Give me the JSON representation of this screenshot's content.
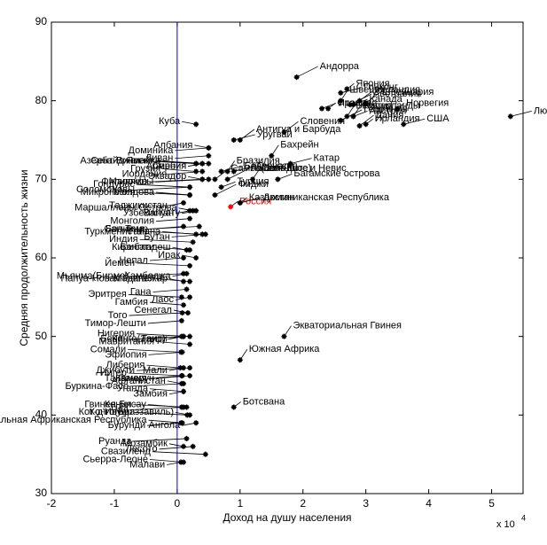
{
  "chart_data": {
    "type": "scatter",
    "x_label": "Доход на душу населения",
    "y_label": "Средняя продолжительность жизни",
    "x_multiplier": "x 10",
    "x_multiplier_exp": "4",
    "xlim": [
      -2,
      5.5
    ],
    "ylim": [
      30,
      90
    ],
    "xticks": [
      -2,
      -1,
      0,
      1,
      2,
      3,
      4,
      5
    ],
    "yticks": [
      30,
      40,
      50,
      60,
      70,
      80,
      90
    ],
    "zero_line_color": "#0000ff",
    "color": "#000000",
    "highlight_color": "#ff0000",
    "highlight": "Россия",
    "series": [
      {
        "name": "Страны",
        "labels": [
          "Япония",
          "Исландия",
          "Гонконг",
          "Швеция",
          "Канада",
          "Австралия",
          "Норвегия",
          "Швейцария",
          "Люксембург",
          "Бельгия",
          "Австрия",
          "Германия",
          "Ирландия",
          "Дания",
          "США",
          "Нидерланды",
          "Италия",
          "Андорра",
          "Франция",
          "Словения",
          "Катар",
          "Бахрейн",
          "Багамские острова",
          "Латвия",
          "Россия",
          "Антигуа и Барбуда",
          "Белоруссия",
          "Куба",
          "Ливан",
          "Сент-Винсент",
          "Сербия",
          "Ямайка",
          "Уругвай",
          "Албания",
          "Доминика",
          "Азербайджан",
          "Армения",
          "Грузия",
          "Соломоновы",
          "Эквадор",
          "Иордания",
          "Гондурас",
          "Таджикистан",
          "Молдова",
          "Марокко",
          "Маршалловы Острова",
          "Монголия",
          "Туркменистан",
          "Узбекистан",
          "Кирибати",
          "Боливия",
          "Ирак",
          "Бутан",
          "Индия",
          "Казахстан",
          "Гайана",
          "Гренада",
          "Бангладеш",
          "Непал",
          "Йемен",
          "Камбоджа",
          "Папуа-Новая Гвинея",
          "Мьянма(Бирма)",
          "Мадагаскар",
          "Гана",
          "Эритрея",
          "Лаос",
          "Гамбия",
          "Того",
          "Сенегал",
          "Тимор-Лешти",
          "Нигерия",
          "Гаити",
          "Мавритания",
          "Бенин",
          "Экваториальная Гвинея",
          "Эфиопия",
          "Сомали",
          "Мали",
          "Либерия",
          "Джибути",
          "Южная Африка",
          "Камерун",
          "Нигер",
          "Замбия",
          "Уганда",
          "Буркина-Фасо",
          "Афганистан",
          "Танзания",
          "Кения",
          "Ботсвана",
          "Гвинея-Бисау",
          "Чад",
          "Конго(Браззавиль)",
          "Бурунди",
          "Кот-д'Ивуар",
          "Ангола",
          "Центральная Африканская Республика",
          "Руанда",
          "Мозамбик",
          "Лесото",
          "Свазиленд",
          "Малави",
          "Сьерра-Леоне",
          "Доминиканская Республика",
          "Бразилия",
          "Турция",
          "Фиджи",
          "Вануату",
          "Самоа(Западное)",
          "Филиппины",
          "Сент-Китс и Невис",
          "Сан-Томе",
          "Микронезия",
          "Конго(Заир)"
        ],
        "x": [
          2.7,
          2.9,
          2.6,
          2.6,
          2.8,
          2.75,
          3.5,
          3.0,
          5.3,
          2.7,
          2.8,
          2.6,
          3.0,
          2.9,
          3.6,
          2.8,
          2.3,
          1.9,
          2.4,
          1.7,
          1.8,
          1.5,
          1.6,
          0.8,
          0.85,
          1.0,
          0.7,
          0.3,
          0.5,
          0.5,
          0.4,
          0.3,
          0.9,
          0.5,
          0.5,
          0.3,
          0.4,
          0.3,
          0.2,
          0.4,
          0.4,
          0.2,
          0.1,
          0.2,
          0.4,
          0.25,
          0.2,
          0.4,
          0.2,
          0.2,
          0.35,
          0.3,
          0.45,
          0.25,
          1.0,
          0.3,
          0.9,
          0.15,
          0.1,
          0.2,
          0.15,
          0.2,
          0.1,
          0.1,
          0.15,
          0.07,
          0.2,
          0.1,
          0.08,
          0.17,
          0.07,
          0.2,
          0.1,
          0.2,
          0.1,
          1.7,
          0.08,
          0.06,
          0.1,
          0.05,
          0.2,
          1.0,
          0.2,
          0.07,
          0.1,
          0.1,
          0.1,
          0.07,
          0.08,
          0.15,
          0.9,
          0.07,
          0.1,
          0.2,
          0.06,
          0.16,
          0.3,
          0.08,
          0.15,
          0.1,
          0.25,
          0.45,
          0.06,
          0.1,
          1.0,
          0.8,
          0.7,
          0.6,
          0.3,
          0.6,
          0.5,
          1.2,
          0.1,
          0.2,
          0.07
        ],
        "values": [
          81.5,
          80,
          81,
          80,
          79.5,
          79.5,
          79,
          79.7,
          78,
          78,
          78,
          77.5,
          77,
          76.8,
          77,
          78,
          79,
          83,
          79,
          76,
          72,
          73,
          70,
          70,
          66.5,
          75,
          71,
          77,
          73,
          72,
          72,
          72,
          75,
          74,
          74,
          72,
          72,
          71,
          69,
          70,
          71,
          69,
          67,
          68,
          70,
          66,
          65,
          63,
          66,
          61,
          64,
          60,
          63,
          62,
          67,
          63,
          71,
          61,
          60,
          59,
          58,
          57,
          58,
          57,
          56,
          55,
          55,
          54,
          53,
          53,
          52,
          50,
          50,
          49,
          50,
          50,
          48,
          48,
          46,
          46,
          46,
          47,
          45,
          45,
          43,
          43,
          44,
          44,
          45,
          41,
          41,
          41,
          41,
          40,
          39,
          40,
          39,
          39,
          37,
          36,
          36,
          35,
          34,
          34,
          67,
          71,
          69,
          68,
          66,
          70,
          70,
          70,
          64,
          68,
          50
        ]
      }
    ]
  }
}
